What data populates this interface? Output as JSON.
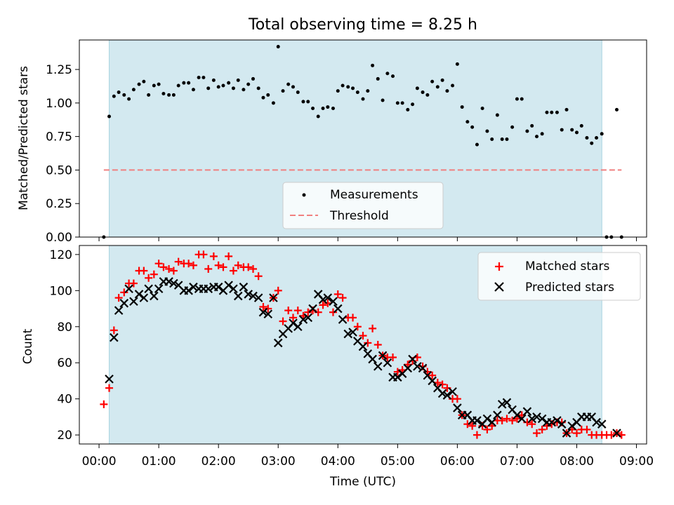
{
  "title": "Total observing time = 8.25 h",
  "colors": {
    "shade": "#d3e9f0",
    "threshold": "#f08080",
    "matched": "#ff0000",
    "predicted": "#000000",
    "measure": "#000000"
  },
  "chart_data": [
    {
      "type": "scatter",
      "ylabel": "Matched/Predicted stars",
      "ylim": [
        0,
        1.47
      ],
      "yticks": [
        "0.00",
        "0.25",
        "0.50",
        "0.75",
        "1.00",
        "1.25"
      ],
      "xlim": [
        -0.33,
        9.17
      ],
      "observing_window": [
        0.17,
        8.42
      ],
      "legend": [
        "Measurements",
        "Threshold"
      ],
      "legend_position": "lower-center",
      "threshold": {
        "value": 0.5,
        "x": [
          0.08,
          8.75
        ]
      },
      "series": [
        {
          "name": "Measurements",
          "x": [
            0.08,
            0.17,
            0.25,
            0.33,
            0.42,
            0.5,
            0.58,
            0.67,
            0.75,
            0.83,
            0.92,
            1.0,
            1.08,
            1.17,
            1.25,
            1.33,
            1.42,
            1.5,
            1.58,
            1.67,
            1.75,
            1.83,
            1.92,
            2.0,
            2.08,
            2.17,
            2.25,
            2.33,
            2.42,
            2.5,
            2.58,
            2.67,
            2.75,
            2.83,
            2.92,
            3.0,
            3.08,
            3.17,
            3.25,
            3.33,
            3.42,
            3.5,
            3.58,
            3.67,
            3.75,
            3.83,
            3.92,
            4.0,
            4.08,
            4.17,
            4.25,
            4.33,
            4.42,
            4.5,
            4.58,
            4.67,
            4.75,
            4.83,
            4.92,
            5.0,
            5.08,
            5.17,
            5.25,
            5.33,
            5.42,
            5.5,
            5.58,
            5.67,
            5.75,
            5.83,
            5.92,
            6.0,
            6.08,
            6.17,
            6.25,
            6.33,
            6.42,
            6.5,
            6.58,
            6.67,
            6.75,
            6.83,
            6.92,
            7.0,
            7.08,
            7.17,
            7.25,
            7.33,
            7.42,
            7.5,
            7.58,
            7.67,
            7.75,
            7.83,
            7.92,
            8.0,
            8.08,
            8.17,
            8.25,
            8.33,
            8.42,
            8.5,
            8.58,
            8.67,
            8.75
          ],
          "y": [
            0.0,
            0.9,
            1.05,
            1.08,
            1.06,
            1.03,
            1.1,
            1.14,
            1.16,
            1.06,
            1.13,
            1.14,
            1.07,
            1.06,
            1.06,
            1.13,
            1.15,
            1.15,
            1.1,
            1.19,
            1.19,
            1.11,
            1.17,
            1.12,
            1.13,
            1.15,
            1.11,
            1.17,
            1.1,
            1.14,
            1.18,
            1.11,
            1.04,
            1.06,
            1.0,
            1.42,
            1.09,
            1.14,
            1.12,
            1.08,
            1.01,
            1.01,
            0.96,
            0.9,
            0.96,
            0.97,
            0.96,
            1.09,
            1.13,
            1.12,
            1.11,
            1.08,
            1.03,
            1.09,
            1.28,
            1.18,
            1.02,
            1.22,
            1.2,
            1.0,
            1.0,
            0.95,
            0.99,
            1.11,
            1.08,
            1.06,
            1.16,
            1.12,
            1.17,
            1.09,
            1.13,
            1.29,
            0.97,
            0.86,
            0.82,
            0.69,
            0.96,
            0.79,
            0.73,
            0.91,
            0.73,
            0.73,
            0.82,
            1.03,
            1.03,
            0.79,
            0.83,
            0.75,
            0.77,
            0.93,
            0.93,
            0.93,
            0.8,
            0.95,
            0.8,
            0.78,
            0.83,
            0.74,
            0.7,
            0.74,
            0.77,
            0.0,
            0.0,
            0.95,
            0.0
          ]
        }
      ]
    },
    {
      "type": "scatter",
      "ylabel": "Count",
      "xlabel": "Time (UTC)",
      "ylim": [
        15,
        125
      ],
      "yticks": [
        "20",
        "40",
        "60",
        "80",
        "100",
        "120"
      ],
      "xticks": [
        "00:00",
        "01:00",
        "02:00",
        "03:00",
        "04:00",
        "05:00",
        "06:00",
        "07:00",
        "08:00",
        "09:00"
      ],
      "xlim": [
        -0.33,
        9.17
      ],
      "observing_window": [
        0.17,
        8.42
      ],
      "legend": [
        "Matched stars",
        "Predicted stars"
      ],
      "legend_position": "upper-right",
      "series": [
        {
          "name": "Matched stars",
          "x": [
            0.08,
            0.17,
            0.25,
            0.33,
            0.42,
            0.5,
            0.58,
            0.67,
            0.75,
            0.83,
            0.92,
            1.0,
            1.08,
            1.17,
            1.25,
            1.33,
            1.42,
            1.5,
            1.58,
            1.67,
            1.75,
            1.83,
            1.92,
            2.0,
            2.08,
            2.17,
            2.25,
            2.33,
            2.42,
            2.5,
            2.58,
            2.67,
            2.75,
            2.83,
            2.92,
            3.0,
            3.08,
            3.17,
            3.25,
            3.33,
            3.42,
            3.5,
            3.58,
            3.67,
            3.75,
            3.83,
            3.92,
            4.0,
            4.08,
            4.17,
            4.25,
            4.33,
            4.42,
            4.5,
            4.58,
            4.67,
            4.75,
            4.83,
            4.92,
            5.0,
            5.08,
            5.17,
            5.25,
            5.33,
            5.42,
            5.5,
            5.58,
            5.67,
            5.75,
            5.83,
            5.92,
            6.0,
            6.08,
            6.17,
            6.25,
            6.33,
            6.42,
            6.5,
            6.58,
            6.67,
            6.75,
            6.83,
            6.92,
            7.0,
            7.08,
            7.17,
            7.25,
            7.33,
            7.42,
            7.5,
            7.58,
            7.67,
            7.75,
            7.83,
            7.92,
            8.0,
            8.08,
            8.17,
            8.25,
            8.33,
            8.42,
            8.5,
            8.58,
            8.67,
            8.75
          ],
          "y": [
            37,
            46,
            78,
            96,
            99,
            104,
            104,
            111,
            111,
            107,
            109,
            115,
            113,
            112,
            111,
            116,
            115,
            115,
            114,
            120,
            120,
            112,
            119,
            114,
            113,
            119,
            111,
            114,
            113,
            113,
            112,
            108,
            91,
            90,
            96,
            100,
            83,
            89,
            85,
            89,
            86,
            88,
            89,
            88,
            92,
            93,
            88,
            98,
            96,
            85,
            85,
            80,
            75,
            71,
            79,
            70,
            64,
            63,
            63,
            55,
            56,
            59,
            61,
            63,
            58,
            55,
            53,
            49,
            48,
            46,
            40,
            40,
            31,
            26,
            25,
            20,
            25,
            23,
            25,
            28,
            28,
            29,
            28,
            29,
            31,
            27,
            26,
            21,
            23,
            25,
            26,
            27,
            27,
            21,
            23,
            21,
            23,
            23,
            20,
            20,
            20,
            20,
            20,
            21,
            20
          ]
        },
        {
          "name": "Predicted stars",
          "x": [
            0.17,
            0.25,
            0.33,
            0.42,
            0.5,
            0.58,
            0.67,
            0.75,
            0.83,
            0.92,
            1.0,
            1.08,
            1.17,
            1.25,
            1.33,
            1.42,
            1.5,
            1.58,
            1.67,
            1.75,
            1.83,
            1.92,
            2.0,
            2.08,
            2.17,
            2.25,
            2.33,
            2.42,
            2.5,
            2.58,
            2.67,
            2.75,
            2.83,
            2.92,
            3.0,
            3.08,
            3.17,
            3.25,
            3.33,
            3.42,
            3.5,
            3.58,
            3.67,
            3.75,
            3.83,
            3.92,
            4.0,
            4.08,
            4.17,
            4.25,
            4.33,
            4.42,
            4.5,
            4.58,
            4.67,
            4.75,
            4.83,
            4.92,
            5.0,
            5.08,
            5.17,
            5.25,
            5.33,
            5.42,
            5.5,
            5.58,
            5.67,
            5.75,
            5.83,
            5.92,
            6.0,
            6.08,
            6.17,
            6.25,
            6.33,
            6.42,
            6.5,
            6.58,
            6.67,
            6.75,
            6.83,
            6.92,
            7.0,
            7.08,
            7.17,
            7.25,
            7.33,
            7.42,
            7.5,
            7.58,
            7.67,
            7.75,
            7.83,
            7.92,
            8.0,
            8.08,
            8.17,
            8.25,
            8.33,
            8.42,
            8.67
          ],
          "y": [
            51,
            74,
            89,
            93,
            101,
            94,
            98,
            96,
            101,
            97,
            101,
            105,
            105,
            104,
            103,
            100,
            100,
            102,
            101,
            101,
            101,
            102,
            102,
            100,
            103,
            101,
            97,
            102,
            98,
            97,
            96,
            88,
            87,
            96,
            71,
            76,
            79,
            82,
            80,
            84,
            85,
            90,
            98,
            95,
            96,
            94,
            90,
            84,
            76,
            77,
            72,
            69,
            65,
            62,
            58,
            64,
            60,
            52,
            52,
            54,
            57,
            62,
            58,
            57,
            53,
            50,
            46,
            43,
            42,
            44,
            35,
            31,
            31,
            28,
            28,
            26,
            29,
            27,
            31,
            37,
            38,
            34,
            31,
            29,
            33,
            29,
            30,
            29,
            27,
            27,
            28,
            26,
            21,
            25,
            27,
            30,
            30,
            30,
            27,
            26,
            21
          ]
        }
      ]
    }
  ]
}
